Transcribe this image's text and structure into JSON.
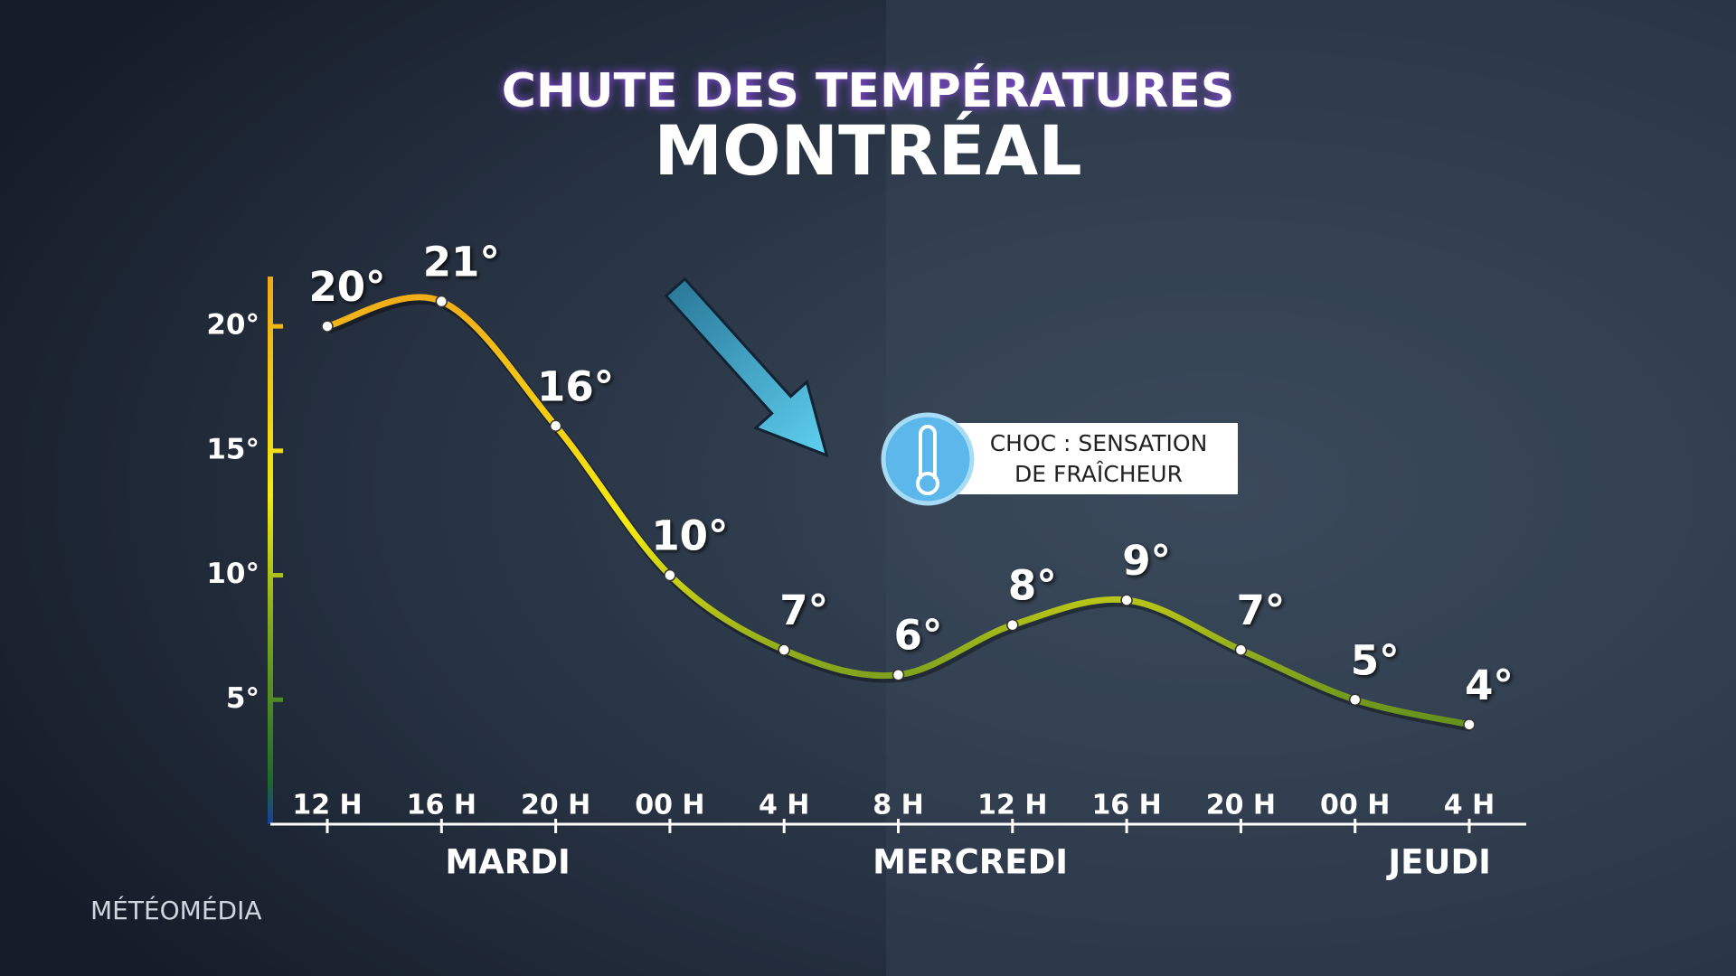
{
  "chart_data": {
    "type": "line",
    "title": "CHUTE DES TEMPÉRATURES",
    "subtitle": "MONTRÉAL",
    "categories": [
      "12 H",
      "16 H",
      "20 H",
      "00 H",
      "4 H",
      "8 H",
      "12 H",
      "16 H",
      "20 H",
      "00 H",
      "4 H"
    ],
    "values": [
      20,
      21,
      16,
      10,
      7,
      6,
      8,
      9,
      7,
      5,
      4
    ],
    "value_labels": [
      "20°",
      "21°",
      "16°",
      "10°",
      "7°",
      "6°",
      "8°",
      "9°",
      "7°",
      "5°",
      "4°"
    ],
    "day_labels": [
      "MARDI",
      "MERCREDI",
      "JEUDI"
    ],
    "ylim": [
      0,
      22
    ],
    "yticks": [
      {
        "value": 5,
        "label": "5°"
      },
      {
        "value": 10,
        "label": "10°"
      },
      {
        "value": 15,
        "label": "15°"
      },
      {
        "value": 20,
        "label": "20°"
      }
    ],
    "callout": [
      "CHOC : SENSATION",
      "DE FRAÎCHEUR"
    ],
    "brand": "MÉTÉOMÉDIA"
  }
}
